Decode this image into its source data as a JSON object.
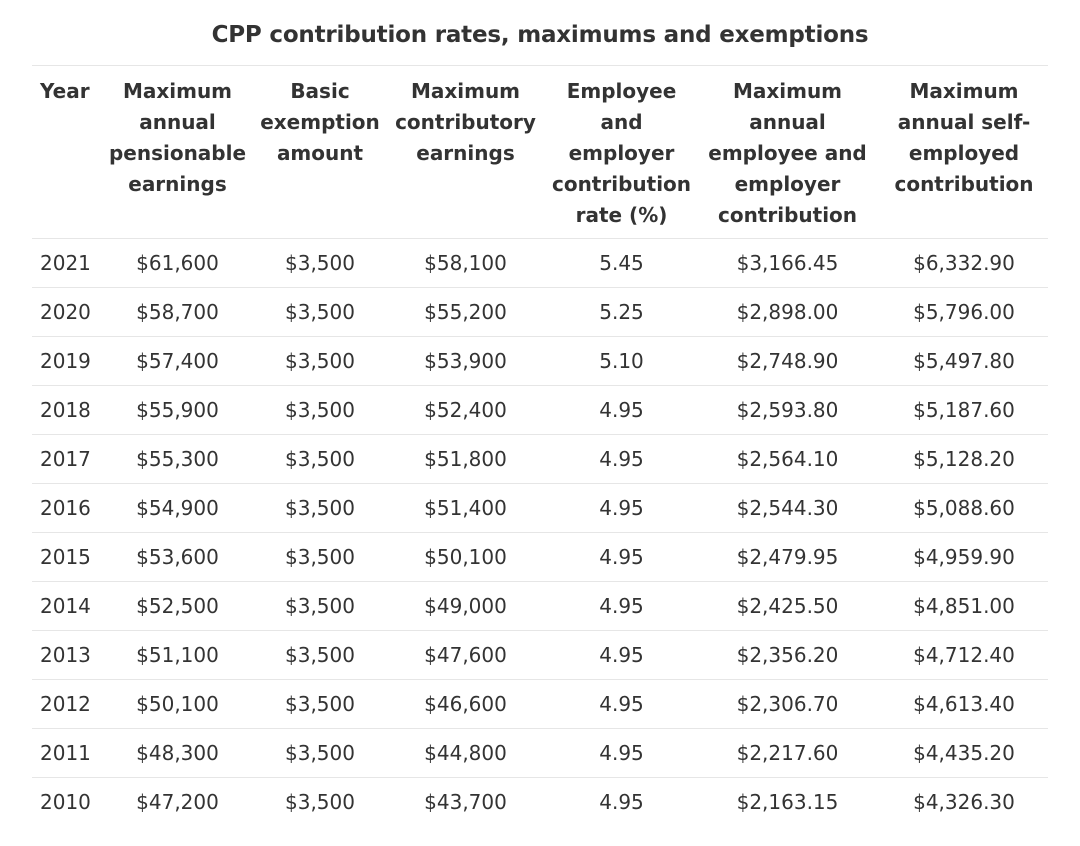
{
  "table": {
    "caption": "CPP contribution rates, maximums and exemptions",
    "headers": [
      "Year",
      "Maximum annual pensionable earnings",
      "Basic exemption amount",
      "Maximum contributory earnings",
      "Employee and employer contribution rate (%)",
      "Maximum annual employee and employer contribution",
      "Maximum annual self-employed contribution"
    ],
    "rows": [
      [
        "2021",
        "$61,600",
        "$3,500",
        "$58,100",
        "5.45",
        "$3,166.45",
        "$6,332.90"
      ],
      [
        "2020",
        "$58,700",
        "$3,500",
        "$55,200",
        "5.25",
        "$2,898.00",
        "$5,796.00"
      ],
      [
        "2019",
        "$57,400",
        "$3,500",
        "$53,900",
        "5.10",
        "$2,748.90",
        "$5,497.80"
      ],
      [
        "2018",
        "$55,900",
        "$3,500",
        "$52,400",
        "4.95",
        "$2,593.80",
        "$5,187.60"
      ],
      [
        "2017",
        "$55,300",
        "$3,500",
        "$51,800",
        "4.95",
        "$2,564.10",
        "$5,128.20"
      ],
      [
        "2016",
        "$54,900",
        "$3,500",
        "$51,400",
        "4.95",
        "$2,544.30",
        "$5,088.60"
      ],
      [
        "2015",
        "$53,600",
        "$3,500",
        "$50,100",
        "4.95",
        "$2,479.95",
        "$4,959.90"
      ],
      [
        "2014",
        "$52,500",
        "$3,500",
        "$49,000",
        "4.95",
        "$2,425.50",
        "$4,851.00"
      ],
      [
        "2013",
        "$51,100",
        "$3,500",
        "$47,600",
        "4.95",
        "$2,356.20",
        "$4,712.40"
      ],
      [
        "2012",
        "$50,100",
        "$3,500",
        "$46,600",
        "4.95",
        "$2,306.70",
        "$4,613.40"
      ],
      [
        "2011",
        "$48,300",
        "$3,500",
        "$44,800",
        "4.95",
        "$2,217.60",
        "$4,435.20"
      ],
      [
        "2010",
        "$47,200",
        "$3,500",
        "$43,700",
        "4.95",
        "$2,163.15",
        "$4,326.30"
      ]
    ]
  }
}
